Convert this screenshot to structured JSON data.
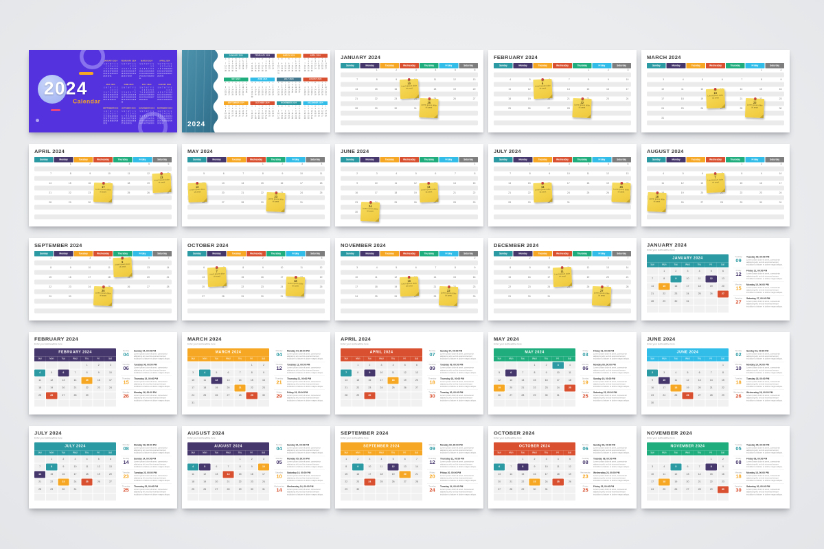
{
  "page": {
    "background": "#ecedef",
    "slide_background": "#ffffff"
  },
  "palette": {
    "teal": "#2b9aa3",
    "purple": "#45366b",
    "yellow": "#f6a723",
    "red": "#d8502f",
    "green": "#1fad7e",
    "cyan": "#32bde8",
    "gray": "#7e7e7e",
    "slate": "#44788e",
    "cover_purple": "#5433de",
    "amber": "#f6a723",
    "sticky_yellow": "#f2cf45",
    "pin_red": "#c22f2f"
  },
  "year": "2024",
  "day_full": [
    "Sunday",
    "Monday",
    "Tuesday",
    "Wednesday",
    "Thursday",
    "Friday",
    "Saturday"
  ],
  "day_abbr": [
    "Sun",
    "Mon",
    "Tue",
    "Wed",
    "Thu",
    "Fri",
    "Sat"
  ],
  "day_initials": [
    "S",
    "M",
    "T",
    "W",
    "T",
    "F",
    "S"
  ],
  "months": [
    {
      "label": "JANUARY",
      "title": "JANUARY 2024",
      "first_dow": 1,
      "days": 31
    },
    {
      "label": "FEBRUARY",
      "title": "FEBRUARY 2024",
      "first_dow": 4,
      "days": 29
    },
    {
      "label": "MARCH",
      "title": "MARCH 2024",
      "first_dow": 5,
      "days": 31
    },
    {
      "label": "APRIL",
      "title": "APRIL 2024",
      "first_dow": 1,
      "days": 30
    },
    {
      "label": "MAY",
      "title": "MAY 2024",
      "first_dow": 3,
      "days": 31
    },
    {
      "label": "JUNE",
      "title": "JUNE 2024",
      "first_dow": 6,
      "days": 30
    },
    {
      "label": "JULY",
      "title": "JULY 2024",
      "first_dow": 1,
      "days": 31
    },
    {
      "label": "AUGUST",
      "title": "AUGUST 2024",
      "first_dow": 4,
      "days": 31
    },
    {
      "label": "SEPTEMBER",
      "title": "SEPTEMBER 2024",
      "first_dow": 0,
      "days": 30
    },
    {
      "label": "OCTOBER",
      "title": "OCTOBER 2024",
      "first_dow": 2,
      "days": 31
    },
    {
      "label": "NOVEMBER",
      "title": "NOVEMBER 2024",
      "first_dow": 5,
      "days": 30
    },
    {
      "label": "DECEMBER",
      "title": "DECEMBER 2024",
      "first_dow": 0,
      "days": 31
    }
  ],
  "cover": {
    "year": "2024",
    "title": "Calendar"
  },
  "overview": {
    "year": "2024",
    "month_header_colors": [
      "teal",
      "purple",
      "yellow",
      "red",
      "green",
      "cyan",
      "slate",
      "red",
      "yellow",
      "red",
      "teal",
      "cyan"
    ]
  },
  "weekly": {
    "day_header_colors": [
      "teal",
      "purple",
      "yellow",
      "red",
      "green",
      "cyan",
      "gray"
    ],
    "sticky_caption": [
      "Lorem ipsum dolor",
      "sit amet"
    ],
    "slides": [
      {
        "month": 0,
        "sticky_dates": [
          10,
          25
        ]
      },
      {
        "month": 1,
        "sticky_dates": [
          6,
          22
        ]
      },
      {
        "month": 2,
        "sticky_dates": [
          13,
          22
        ]
      },
      {
        "month": 3,
        "sticky_dates": [
          13,
          17
        ]
      },
      {
        "month": 4,
        "sticky_dates": [
          12,
          23
        ]
      },
      {
        "month": 5,
        "sticky_dates": [
          13,
          24
        ]
      },
      {
        "month": 6,
        "sticky_dates": [
          16,
          20
        ]
      },
      {
        "month": 7,
        "sticky_dates": [
          7,
          18
        ]
      },
      {
        "month": 8,
        "sticky_dates": [
          5,
          25
        ]
      },
      {
        "month": 9,
        "sticky_dates": [
          7,
          18
        ]
      },
      {
        "month": 10,
        "sticky_dates": [
          13,
          22
        ]
      },
      {
        "month": 11,
        "sticky_dates": [
          11,
          27
        ]
      }
    ]
  },
  "blocks": {
    "subtitle": "Enter your subheadline here",
    "note_time": "00:00 PM",
    "note_body": "Lorem ipsum dolor sit amet, consectetur adipiscing elit, sed do eiusmod tempor incididunt ut labore et dolore magna aliqua.",
    "slides": [
      {
        "month": 0,
        "header_color": "teal",
        "events": [
          {
            "date": 9,
            "color": "teal"
          },
          {
            "date": 12,
            "color": "purple"
          },
          {
            "date": 15,
            "color": "yellow"
          },
          {
            "date": 27,
            "color": "red"
          }
        ]
      },
      {
        "month": 1,
        "header_color": "purple",
        "events": [
          {
            "date": 4,
            "color": "teal"
          },
          {
            "date": 6,
            "color": "purple"
          },
          {
            "date": 15,
            "color": "yellow"
          },
          {
            "date": 26,
            "color": "red"
          }
        ]
      },
      {
        "month": 2,
        "header_color": "yellow",
        "events": [
          {
            "date": 4,
            "color": "teal"
          },
          {
            "date": 12,
            "color": "purple"
          },
          {
            "date": 21,
            "color": "yellow"
          },
          {
            "date": 29,
            "color": "red"
          }
        ]
      },
      {
        "month": 3,
        "header_color": "red",
        "events": [
          {
            "date": 7,
            "color": "teal"
          },
          {
            "date": 9,
            "color": "purple"
          },
          {
            "date": 18,
            "color": "yellow"
          },
          {
            "date": 30,
            "color": "red"
          }
        ]
      },
      {
        "month": 4,
        "header_color": "green",
        "events": [
          {
            "date": 3,
            "color": "teal"
          },
          {
            "date": 6,
            "color": "purple"
          },
          {
            "date": 19,
            "color": "yellow"
          },
          {
            "date": 25,
            "color": "red"
          }
        ]
      },
      {
        "month": 5,
        "header_color": "cyan",
        "events": [
          {
            "date": 2,
            "color": "teal"
          },
          {
            "date": 10,
            "color": "purple"
          },
          {
            "date": 18,
            "color": "yellow"
          },
          {
            "date": 26,
            "color": "red"
          }
        ]
      },
      {
        "month": 6,
        "header_color": "teal",
        "events": [
          {
            "date": 8,
            "color": "teal"
          },
          {
            "date": 14,
            "color": "purple"
          },
          {
            "date": 23,
            "color": "yellow"
          },
          {
            "date": 25,
            "color": "red"
          }
        ]
      },
      {
        "month": 7,
        "header_color": "purple",
        "events": [
          {
            "date": 4,
            "color": "teal"
          },
          {
            "date": 5,
            "color": "purple"
          },
          {
            "date": 10,
            "color": "yellow"
          },
          {
            "date": 14,
            "color": "red"
          }
        ]
      },
      {
        "month": 8,
        "header_color": "yellow",
        "events": [
          {
            "date": 9,
            "color": "teal"
          },
          {
            "date": 12,
            "color": "purple"
          },
          {
            "date": 20,
            "color": "yellow"
          },
          {
            "date": 24,
            "color": "red"
          }
        ]
      },
      {
        "month": 9,
        "header_color": "red",
        "events": [
          {
            "date": 6,
            "color": "teal"
          },
          {
            "date": 8,
            "color": "purple"
          },
          {
            "date": 23,
            "color": "yellow"
          },
          {
            "date": 25,
            "color": "red"
          }
        ]
      },
      {
        "month": 10,
        "header_color": "green",
        "events": [
          {
            "date": 5,
            "color": "teal"
          },
          {
            "date": 8,
            "color": "purple"
          },
          {
            "date": 18,
            "color": "yellow"
          },
          {
            "date": 30,
            "color": "red"
          }
        ]
      }
    ]
  }
}
